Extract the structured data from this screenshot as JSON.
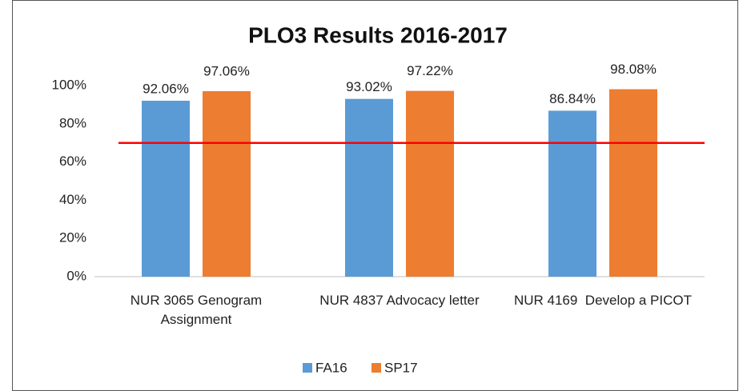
{
  "chart_data": {
    "type": "bar",
    "title": "PLO3 Results 2016-2017",
    "categories": [
      "NUR 3065 Genogram Assignment",
      "NUR 4837 Advocacy letter",
      "NUR 4169  Develop a PICOT"
    ],
    "series": [
      {
        "name": "FA16",
        "color": "#5b9bd5",
        "values": [
          92.06,
          93.02,
          86.84
        ],
        "value_labels": [
          "92.06%",
          "93.02%",
          "86.84%"
        ]
      },
      {
        "name": "SP17",
        "color": "#ed7d31",
        "values": [
          97.06,
          97.22,
          98.08
        ],
        "value_labels": [
          "97.06%",
          "97.22%",
          "98.08%"
        ]
      }
    ],
    "ylim": [
      0,
      100
    ],
    "yticks": [
      {
        "value": 0,
        "label": "0%"
      },
      {
        "value": 20,
        "label": "20%"
      },
      {
        "value": 40,
        "label": "40%"
      },
      {
        "value": 60,
        "label": "60%"
      },
      {
        "value": 80,
        "label": "80%"
      },
      {
        "value": 100,
        "label": "100%"
      }
    ],
    "grid": false,
    "target_line": {
      "value": 70,
      "color": "#ff0000"
    },
    "legend": "bottom"
  }
}
